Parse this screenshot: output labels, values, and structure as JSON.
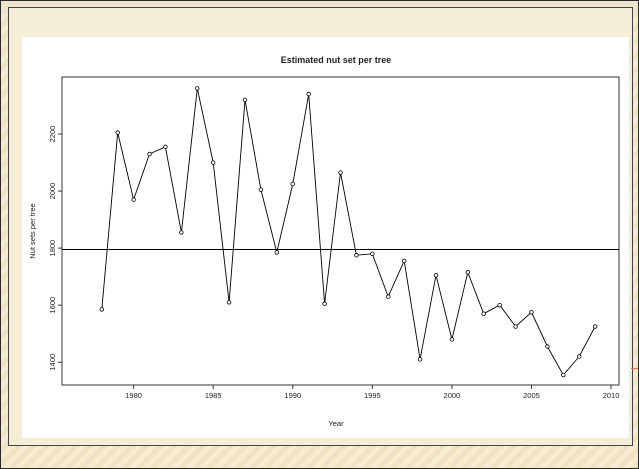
{
  "chart_data": {
    "type": "line",
    "title": "Estimated nut set per tree",
    "xlabel": "Year",
    "ylabel": "Nut sets per tree",
    "xlim": [
      1975.5,
      2010.5
    ],
    "ylim": [
      1320,
      2400
    ],
    "x_ticks": [
      1980,
      1985,
      1990,
      1995,
      2000,
      2005,
      2010
    ],
    "y_ticks": [
      1400,
      1600,
      1800,
      2000,
      2200
    ],
    "x": [
      1978,
      1979,
      1980,
      1981,
      1982,
      1983,
      1984,
      1985,
      1986,
      1987,
      1988,
      1989,
      1990,
      1991,
      1992,
      1993,
      1994,
      1995,
      1996,
      1997,
      1998,
      1999,
      2000,
      2001,
      2002,
      2003,
      2004,
      2005,
      2006,
      2007,
      2008,
      2009
    ],
    "values": [
      1585,
      2205,
      1970,
      2130,
      2155,
      1855,
      2360,
      2100,
      1610,
      2320,
      2005,
      1785,
      2025,
      2340,
      1605,
      2065,
      1775,
      1780,
      1630,
      1755,
      1410,
      1705,
      1480,
      1715,
      1570,
      1600,
      1525,
      1575,
      1455,
      1355,
      1420,
      1525
    ],
    "reference_line": 1795,
    "grid": false,
    "legend": "none",
    "colors": {
      "line": "#000000",
      "axis": "#333333",
      "text": "#222222"
    }
  }
}
